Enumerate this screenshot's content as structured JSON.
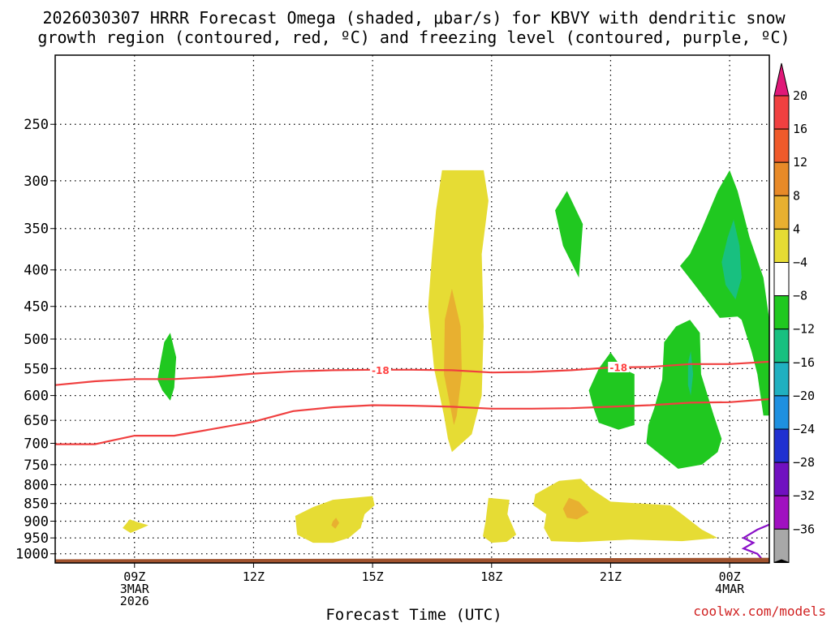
{
  "chart_data": {
    "type": "heatmap",
    "title": [
      "2026030307 HRRR Forecast Omega (shaded, μbar/s) for KBVY with dendritic snow",
      "growth region (contoured, red, ºC) and freezing level (contoured, purple, ºC)"
    ],
    "xlabel": "Forecast Time (UTC)",
    "ylabel": "",
    "credit": "coolwx.com/models",
    "x_range_hours": [
      7,
      25
    ],
    "y_range_mb": [
      200,
      1030
    ],
    "y_ticks": [
      250,
      300,
      350,
      400,
      450,
      500,
      550,
      600,
      650,
      700,
      750,
      800,
      850,
      900,
      950,
      1000
    ],
    "x_ticks": [
      {
        "hour": 9,
        "lines": [
          "09Z",
          "3MAR",
          "2026"
        ]
      },
      {
        "hour": 12,
        "lines": [
          "12Z"
        ]
      },
      {
        "hour": 15,
        "lines": [
          "15Z"
        ]
      },
      {
        "hour": 18,
        "lines": [
          "18Z"
        ]
      },
      {
        "hour": 21,
        "lines": [
          "21Z"
        ]
      },
      {
        "hour": 24,
        "lines": [
          "00Z",
          "4MAR"
        ]
      }
    ],
    "colorbar": {
      "ticks": [
        "20",
        "16",
        "12",
        "8",
        "4",
        "−4",
        "−8",
        "−12",
        "−16",
        "−20",
        "−24",
        "−28",
        "−32",
        "−36"
      ],
      "colors": [
        "#f04040",
        "#ef5a2a",
        "#e88a28",
        "#e8b030",
        "#e6dc34",
        "#ffffff",
        "#20c820",
        "#18c080",
        "#20b0c0",
        "#1e90e0",
        "#2030d0",
        "#7010c0",
        "#a010c0",
        "#a8a8a8"
      ],
      "top_color": "#e01878",
      "bottom_color": "#000000"
    },
    "contours": [
      {
        "name": "dgz-top -18C",
        "color": "#f04040",
        "label": "-18",
        "points": [
          [
            7,
            580
          ],
          [
            8,
            573
          ],
          [
            9,
            569
          ],
          [
            10,
            569
          ],
          [
            11,
            565
          ],
          [
            12,
            559
          ],
          [
            13,
            555
          ],
          [
            14,
            553
          ],
          [
            15,
            552
          ],
          [
            16,
            552
          ],
          [
            17,
            553
          ],
          [
            18,
            557
          ],
          [
            19,
            556
          ],
          [
            20,
            553
          ],
          [
            21,
            548
          ],
          [
            22,
            547
          ],
          [
            23,
            542
          ],
          [
            24,
            542
          ],
          [
            25,
            538
          ]
        ]
      },
      {
        "name": "dgz-bottom -12C",
        "color": "#f04040",
        "label": "",
        "points": [
          [
            7,
            702
          ],
          [
            8,
            702
          ],
          [
            9,
            683
          ],
          [
            10,
            683
          ],
          [
            11,
            668
          ],
          [
            12,
            653
          ],
          [
            13,
            631
          ],
          [
            14,
            623
          ],
          [
            15,
            619
          ],
          [
            16,
            620
          ],
          [
            17,
            622
          ],
          [
            18,
            626
          ],
          [
            19,
            626
          ],
          [
            20,
            625
          ],
          [
            21,
            622
          ],
          [
            22,
            619
          ],
          [
            23,
            614
          ],
          [
            24,
            613
          ],
          [
            25,
            607
          ]
        ]
      },
      {
        "name": "freezing level 0C",
        "color": "#8a10c8",
        "label": "",
        "points": [
          [
            25,
            910
          ],
          [
            24.7,
            925
          ],
          [
            24.35,
            950
          ],
          [
            24.6,
            965
          ],
          [
            24.35,
            983
          ],
          [
            24.7,
            1000
          ],
          [
            24.8,
            1015
          ]
        ]
      }
    ],
    "contour_labels": [
      {
        "text": "-18",
        "x": 15.2,
        "y": 553
      },
      {
        "text": "-18",
        "x": 21.2,
        "y": 548
      }
    ],
    "shaded_regions": [
      {
        "value": "4-8",
        "color": "#e6dc34",
        "points": [
          [
            16.8,
            640
          ],
          [
            16.55,
            550
          ],
          [
            16.4,
            450
          ],
          [
            16.5,
            380
          ],
          [
            16.6,
            330
          ],
          [
            16.75,
            290
          ],
          [
            17.8,
            290
          ],
          [
            17.92,
            320
          ],
          [
            17.75,
            380
          ],
          [
            17.8,
            480
          ],
          [
            17.75,
            600
          ],
          [
            17.5,
            680
          ],
          [
            17.0,
            720
          ],
          [
            16.9,
            690
          ]
        ]
      },
      {
        "value": "8-12",
        "color": "#e8b030",
        "points": [
          [
            17.05,
            660
          ],
          [
            16.8,
            560
          ],
          [
            16.82,
            470
          ],
          [
            17.0,
            425
          ],
          [
            17.22,
            480
          ],
          [
            17.25,
            560
          ],
          [
            17.12,
            640
          ]
        ]
      },
      {
        "value": "4-8",
        "color": "#e6dc34",
        "points": [
          [
            13.05,
            885
          ],
          [
            13.5,
            860
          ],
          [
            14.0,
            840
          ],
          [
            15.0,
            830
          ],
          [
            15.05,
            855
          ],
          [
            14.8,
            880
          ],
          [
            14.7,
            920
          ],
          [
            14.4,
            950
          ],
          [
            14.0,
            965
          ],
          [
            13.5,
            965
          ],
          [
            13.1,
            940
          ]
        ]
      },
      {
        "value": "8-12",
        "color": "#e8b030",
        "points": [
          [
            14.0,
            900
          ],
          [
            14.08,
            890
          ],
          [
            14.16,
            905
          ],
          [
            14.06,
            922
          ],
          [
            13.96,
            912
          ]
        ]
      },
      {
        "value": "4-8",
        "color": "#e6dc34",
        "points": [
          [
            8.7,
            920
          ],
          [
            8.88,
            895
          ],
          [
            9.05,
            902
          ],
          [
            9.35,
            912
          ],
          [
            9.1,
            925
          ],
          [
            8.9,
            935
          ]
        ]
      },
      {
        "value": "4-8",
        "color": "#e6dc34",
        "points": [
          [
            17.85,
            900
          ],
          [
            17.92,
            835
          ],
          [
            18.45,
            840
          ],
          [
            18.4,
            880
          ],
          [
            18.62,
            940
          ],
          [
            18.38,
            962
          ],
          [
            18.0,
            965
          ],
          [
            17.78,
            945
          ]
        ]
      },
      {
        "value": "4-8",
        "color": "#e6dc34",
        "points": [
          [
            19.1,
            825
          ],
          [
            19.7,
            790
          ],
          [
            20.25,
            785
          ],
          [
            20.5,
            810
          ],
          [
            21.0,
            845
          ],
          [
            22.5,
            855
          ],
          [
            22.8,
            880
          ],
          [
            23.3,
            925
          ],
          [
            23.7,
            950
          ],
          [
            22.8,
            960
          ],
          [
            21.5,
            955
          ],
          [
            20.2,
            963
          ],
          [
            19.5,
            960
          ],
          [
            19.32,
            920
          ],
          [
            19.38,
            880
          ],
          [
            19.05,
            855
          ]
        ]
      },
      {
        "value": "8-12",
        "color": "#e8b030",
        "points": [
          [
            19.8,
            865
          ],
          [
            19.95,
            835
          ],
          [
            20.2,
            845
          ],
          [
            20.45,
            875
          ],
          [
            20.15,
            895
          ],
          [
            19.9,
            890
          ]
        ]
      },
      {
        "value": "-4 to -8",
        "color": "#20c820",
        "points": [
          [
            19.8,
            370
          ],
          [
            19.6,
            330
          ],
          [
            19.9,
            310
          ],
          [
            20.3,
            345
          ],
          [
            20.2,
            410
          ]
        ]
      },
      {
        "value": "-4 to -8",
        "color": "#20c820",
        "points": [
          [
            9.65,
            540
          ],
          [
            9.75,
            505
          ],
          [
            9.9,
            490
          ],
          [
            10.05,
            530
          ],
          [
            10.0,
            585
          ],
          [
            9.9,
            610
          ],
          [
            9.7,
            590
          ],
          [
            9.58,
            570
          ]
        ]
      },
      {
        "value": "-4 to -8",
        "color": "#20c820",
        "points": [
          [
            20.45,
            590
          ],
          [
            20.7,
            550
          ],
          [
            21.0,
            522
          ],
          [
            21.3,
            550
          ],
          [
            21.6,
            560
          ],
          [
            21.6,
            600
          ],
          [
            21.6,
            660
          ],
          [
            21.2,
            670
          ],
          [
            20.7,
            655
          ],
          [
            20.55,
            620
          ]
        ]
      },
      {
        "value": "-4 to -8",
        "color": "#20c820",
        "points": [
          [
            22.1,
            625
          ],
          [
            22.3,
            570
          ],
          [
            22.35,
            505
          ],
          [
            22.65,
            480
          ],
          [
            23.0,
            470
          ],
          [
            23.25,
            490
          ],
          [
            23.28,
            560
          ],
          [
            23.6,
            640
          ],
          [
            23.8,
            690
          ],
          [
            23.7,
            720
          ],
          [
            23.3,
            750
          ],
          [
            22.7,
            760
          ],
          [
            21.9,
            700
          ],
          [
            21.95,
            660
          ]
        ]
      },
      {
        "value": "-8 to -12",
        "color": "#18c080",
        "points": [
          [
            22.95,
            540
          ],
          [
            23.02,
            520
          ],
          [
            23.08,
            560
          ],
          [
            23.02,
            600
          ],
          [
            22.95,
            580
          ]
        ]
      },
      {
        "value": "-4 to -8",
        "color": "#20c820",
        "points": [
          [
            22.75,
            395
          ],
          [
            23.0,
            380
          ],
          [
            23.3,
            350
          ],
          [
            23.7,
            310
          ],
          [
            24.0,
            290
          ],
          [
            24.2,
            310
          ],
          [
            24.5,
            360
          ],
          [
            24.85,
            410
          ],
          [
            25,
            470
          ],
          [
            25,
            640
          ],
          [
            24.85,
            640
          ],
          [
            24.7,
            560
          ],
          [
            24.55,
            520
          ],
          [
            24.3,
            470
          ],
          [
            24.2,
            465
          ],
          [
            23.75,
            467
          ],
          [
            23.4,
            440
          ],
          [
            23.05,
            415
          ]
        ]
      },
      {
        "value": "-8 to -12",
        "color": "#18c080",
        "points": [
          [
            23.8,
            390
          ],
          [
            23.95,
            360
          ],
          [
            24.1,
            340
          ],
          [
            24.25,
            370
          ],
          [
            24.3,
            410
          ],
          [
            24.15,
            440
          ],
          [
            23.9,
            420
          ]
        ]
      }
    ],
    "surface": {
      "color": "#a0522d",
      "top_mb_left": 1018,
      "top_mb_right": 1013
    }
  }
}
